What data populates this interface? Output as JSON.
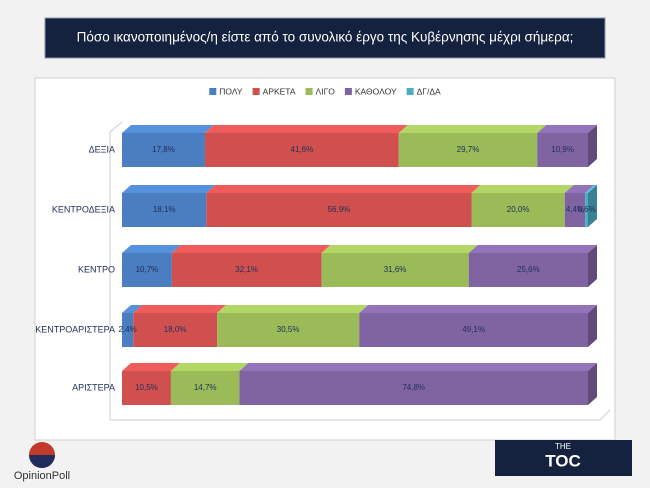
{
  "chart_data": {
    "type": "stacked-bar-horizontal-3d",
    "title": "Πόσο ικανοποιημένος/η είστε από το συνολικό έργο της Κυβέρνησης μέχρι σήμερα;",
    "categories": [
      "ΔΕΞΙΑ",
      "ΚΕΝΤΡΟΔΕΞΙΑ",
      "ΚΕΝΤΡΟ",
      "ΚΕΝΤΡΟΑΡΙΣΤΕΡΑ",
      "ΑΡΙΣΤΕΡΑ"
    ],
    "xlim": [
      0,
      100
    ],
    "legend": "top",
    "series": [
      {
        "name": "ΠΟΛΥ",
        "color": "#4a7ec0",
        "values": [
          17.8,
          18.1,
          10.7,
          2.4,
          null
        ],
        "value_labels": [
          "17,8%",
          "18,1%",
          "10,7%",
          "2,4%",
          null
        ]
      },
      {
        "name": "ΑΡΚΕΤΑ",
        "color": "#d0504f",
        "values": [
          41.6,
          56.9,
          32.1,
          18.0,
          10.5
        ],
        "value_labels": [
          "41,6%",
          "56,9%",
          "32,1%",
          "18,0%",
          "10,5%"
        ]
      },
      {
        "name": "ΛΙΓΟ",
        "color": "#9bbb59",
        "values": [
          29.7,
          20.0,
          31.6,
          30.5,
          14.7
        ],
        "value_labels": [
          "29,7%",
          "20,0%",
          "31,6%",
          "30,5%",
          "14,7%"
        ]
      },
      {
        "name": "ΚΑΘΟΛΟΥ",
        "color": "#8064a2",
        "values": [
          10.9,
          4.4,
          25.6,
          49.1,
          74.8
        ],
        "value_labels": [
          "10,9%",
          "4,4%",
          "25,6%",
          "49,1%",
          "74,8%"
        ]
      },
      {
        "name": "ΔΓ/ΔΑ",
        "color": "#4bacc6",
        "values": [
          null,
          0.6,
          null,
          null,
          null
        ],
        "value_labels": [
          null,
          "0,6%",
          null,
          null,
          null
        ]
      }
    ]
  },
  "logos": {
    "left": "OpinionPoll",
    "right_top": "THE",
    "right_main": "TOC"
  }
}
